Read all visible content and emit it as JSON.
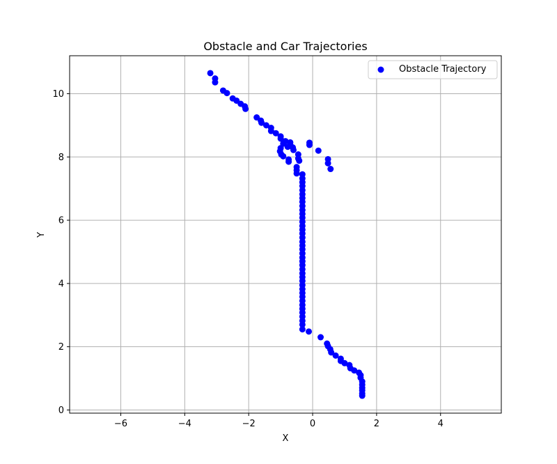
{
  "chart_data": {
    "type": "scatter",
    "title": "Obstacle and Car Trajectories",
    "xlabel": "X",
    "ylabel": "Y",
    "xlim": [
      -7.6,
      5.9
    ],
    "ylim": [
      -0.1,
      11.2
    ],
    "xticks": [
      -6,
      -4,
      -2,
      0,
      2,
      4
    ],
    "yticks": [
      0,
      2,
      4,
      6,
      8,
      10
    ],
    "xtick_labels": [
      "−6",
      "−4",
      "−2",
      "0",
      "2",
      "4"
    ],
    "ytick_labels": [
      "0",
      "2",
      "4",
      "6",
      "8",
      "10"
    ],
    "grid": true,
    "legend_position": "top-right",
    "series": [
      {
        "name": "Obstacle Trajectory",
        "color": "#0000ff",
        "marker": "circle",
        "points": [
          [
            -3.2,
            10.65
          ],
          [
            -3.05,
            10.48
          ],
          [
            -3.05,
            10.36
          ],
          [
            -2.8,
            10.1
          ],
          [
            -2.68,
            10.02
          ],
          [
            -2.5,
            9.85
          ],
          [
            -2.38,
            9.78
          ],
          [
            -2.25,
            9.68
          ],
          [
            -2.12,
            9.6
          ],
          [
            -2.1,
            9.52
          ],
          [
            -1.75,
            9.25
          ],
          [
            -1.62,
            9.15
          ],
          [
            -1.6,
            9.08
          ],
          [
            -1.45,
            9.0
          ],
          [
            -1.3,
            8.92
          ],
          [
            -1.3,
            8.82
          ],
          [
            -1.15,
            8.75
          ],
          [
            -1.0,
            8.65
          ],
          [
            -1.0,
            8.58
          ],
          [
            -0.85,
            8.5
          ],
          [
            -0.7,
            8.46
          ],
          [
            -0.7,
            8.38
          ],
          [
            -0.78,
            8.32
          ],
          [
            -0.62,
            8.3
          ],
          [
            -0.6,
            8.22
          ],
          [
            -0.92,
            8.42
          ],
          [
            -1.0,
            8.28
          ],
          [
            -1.02,
            8.18
          ],
          [
            -0.98,
            8.08
          ],
          [
            -0.92,
            8.02
          ],
          [
            -0.75,
            7.92
          ],
          [
            -0.75,
            7.85
          ],
          [
            -0.45,
            8.08
          ],
          [
            -0.45,
            7.95
          ],
          [
            -0.42,
            7.88
          ],
          [
            -0.5,
            7.68
          ],
          [
            -0.5,
            7.58
          ],
          [
            -0.5,
            7.48
          ],
          [
            -0.1,
            8.45
          ],
          [
            -0.1,
            8.38
          ],
          [
            0.18,
            8.2
          ],
          [
            0.48,
            7.93
          ],
          [
            0.48,
            7.8
          ],
          [
            0.56,
            7.62
          ],
          [
            -0.32,
            7.45
          ],
          [
            -0.32,
            7.32
          ],
          [
            -0.32,
            7.2
          ],
          [
            -0.32,
            7.08
          ],
          [
            -0.32,
            6.95
          ],
          [
            -0.32,
            6.82
          ],
          [
            -0.32,
            6.7
          ],
          [
            -0.32,
            6.58
          ],
          [
            -0.32,
            6.45
          ],
          [
            -0.32,
            6.32
          ],
          [
            -0.32,
            6.2
          ],
          [
            -0.32,
            6.08
          ],
          [
            -0.32,
            5.95
          ],
          [
            -0.32,
            5.82
          ],
          [
            -0.32,
            5.7
          ],
          [
            -0.32,
            5.58
          ],
          [
            -0.32,
            5.45
          ],
          [
            -0.32,
            5.32
          ],
          [
            -0.32,
            5.2
          ],
          [
            -0.32,
            5.08
          ],
          [
            -0.32,
            4.95
          ],
          [
            -0.32,
            4.82
          ],
          [
            -0.32,
            4.7
          ],
          [
            -0.32,
            4.58
          ],
          [
            -0.32,
            4.45
          ],
          [
            -0.32,
            4.32
          ],
          [
            -0.32,
            4.2
          ],
          [
            -0.32,
            4.08
          ],
          [
            -0.32,
            3.95
          ],
          [
            -0.32,
            3.82
          ],
          [
            -0.32,
            3.7
          ],
          [
            -0.32,
            3.58
          ],
          [
            -0.32,
            3.45
          ],
          [
            -0.32,
            3.32
          ],
          [
            -0.32,
            3.2
          ],
          [
            -0.32,
            3.08
          ],
          [
            -0.32,
            2.95
          ],
          [
            -0.32,
            2.82
          ],
          [
            -0.32,
            2.7
          ],
          [
            -0.32,
            2.55
          ],
          [
            -0.12,
            2.48
          ],
          [
            0.25,
            2.3
          ],
          [
            0.45,
            2.1
          ],
          [
            0.48,
            2.02
          ],
          [
            0.55,
            1.92
          ],
          [
            0.58,
            1.82
          ],
          [
            0.72,
            1.72
          ],
          [
            0.88,
            1.62
          ],
          [
            0.88,
            1.55
          ],
          [
            1.0,
            1.48
          ],
          [
            1.15,
            1.42
          ],
          [
            1.18,
            1.32
          ],
          [
            1.3,
            1.25
          ],
          [
            1.45,
            1.18
          ],
          [
            1.5,
            1.1
          ],
          [
            1.5,
            1.02
          ],
          [
            1.55,
            0.9
          ],
          [
            1.55,
            0.8
          ],
          [
            1.55,
            0.7
          ],
          [
            1.55,
            0.62
          ],
          [
            1.55,
            0.52
          ],
          [
            1.55,
            0.45
          ]
        ]
      }
    ]
  }
}
